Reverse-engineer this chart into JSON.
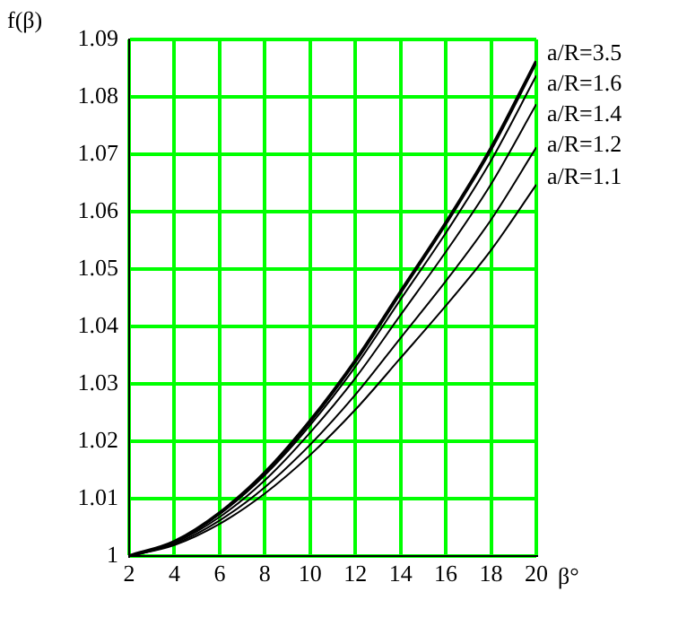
{
  "chart_data": {
    "type": "line",
    "xlabel": "β°",
    "ylabel": "f(β)",
    "x": [
      2,
      4,
      6,
      8,
      10,
      12,
      14,
      16,
      18,
      20
    ],
    "xlim": [
      2,
      20
    ],
    "xticks": [
      2,
      4,
      6,
      8,
      10,
      12,
      14,
      16,
      18,
      20
    ],
    "ylim": [
      1,
      1.09
    ],
    "yticks": [
      1,
      1.01,
      1.02,
      1.03,
      1.04,
      1.05,
      1.06,
      1.07,
      1.08,
      1.09
    ],
    "grid": true,
    "marker": "none",
    "line_style": "solid",
    "series": [
      {
        "name": "a/R=3.5",
        "color": "#000000",
        "values": [
          1,
          1.0025,
          1.0075,
          1.0145,
          1.0235,
          1.034,
          1.046,
          1.058,
          1.071,
          1.0862
        ]
      },
      {
        "name": "a/R=1.6",
        "color": "#000000",
        "values": [
          1,
          1.0024,
          1.0073,
          1.0141,
          1.0228,
          1.033,
          1.0447,
          1.0563,
          1.0689,
          1.0837
        ]
      },
      {
        "name": "a/R=1.4",
        "color": "#000000",
        "values": [
          1,
          1.0023,
          1.0068,
          1.0132,
          1.0215,
          1.031,
          1.042,
          1.053,
          1.0648,
          1.0787
        ]
      },
      {
        "name": "a/R=1.2",
        "color": "#000000",
        "values": [
          1,
          1.0021,
          1.0062,
          1.012,
          1.0194,
          1.0281,
          1.038,
          1.0479,
          1.0586,
          1.0712
        ]
      },
      {
        "name": "a/R=1.1",
        "color": "#000000",
        "values": [
          1,
          1.0019,
          1.0056,
          1.0109,
          1.0176,
          1.0255,
          1.0345,
          1.0436,
          1.0533,
          1.0647
        ]
      }
    ]
  }
}
